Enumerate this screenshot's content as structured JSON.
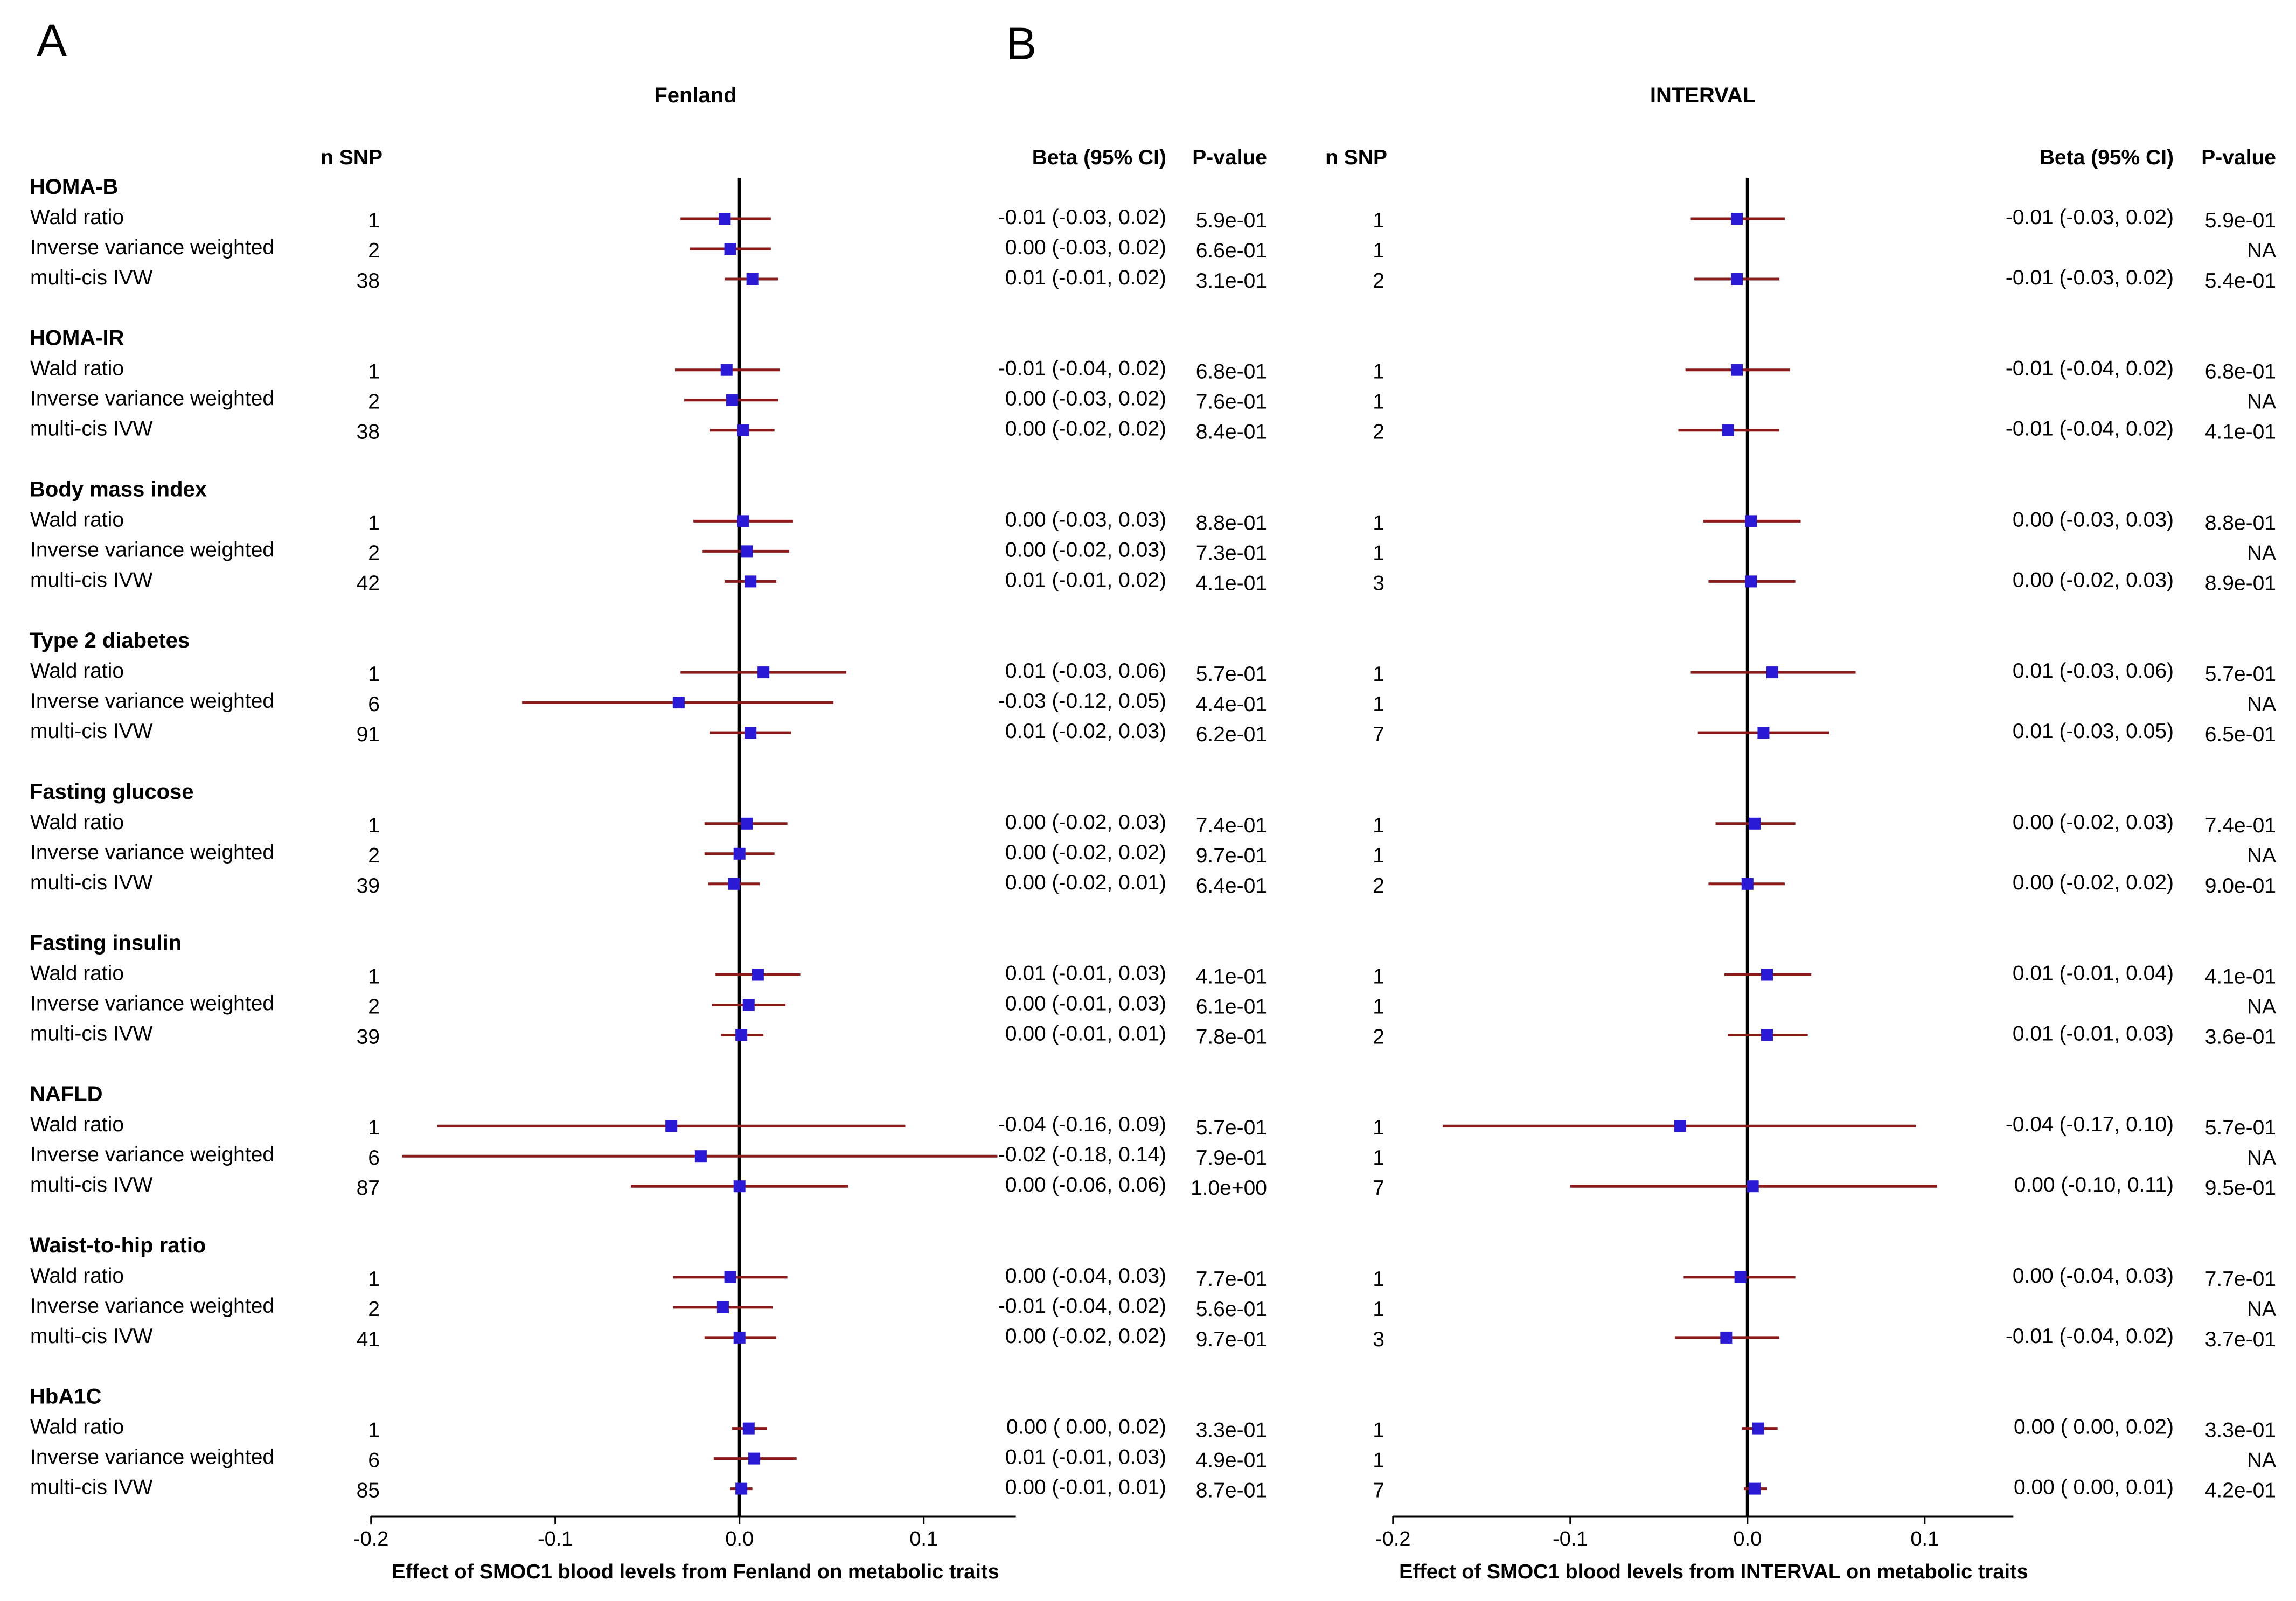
{
  "panel_letters": [
    "A",
    "B"
  ],
  "headers": {
    "nsnp": "n SNP",
    "beta": "Beta (95% CI)",
    "pvalue": "P-value"
  },
  "chart_data": [
    {
      "type": "forest",
      "panel": "A",
      "title": "Fenland",
      "xlabel": "Effect of SMOC1 blood levels from Fenland on metabolic traits",
      "xlim": [
        -0.2,
        0.15
      ],
      "xticks": [
        -0.2,
        -0.1,
        0.0,
        0.1
      ],
      "xtick_labels": [
        "-0.2",
        "-0.1",
        "0.0",
        "0.1"
      ],
      "reference_line": 0,
      "marker_color": "#2a1ad6",
      "ci_color": "#8b1a1a",
      "groups": [
        {
          "name": "HOMA-B",
          "rows": [
            {
              "method": "Wald ratio",
              "n_snp": "1",
              "beta": -0.008,
              "lo": -0.032,
              "hi": 0.017,
              "beta_text": "-0.01 (-0.03, 0.02)",
              "p_text": "5.9e-01"
            },
            {
              "method": "Inverse variance weighted",
              "n_snp": "2",
              "beta": -0.005,
              "lo": -0.027,
              "hi": 0.017,
              "beta_text": "0.00 (-0.03, 0.02)",
              "p_text": "6.6e-01"
            },
            {
              "method": "multi-cis IVW",
              "n_snp": "38",
              "beta": 0.007,
              "lo": -0.008,
              "hi": 0.021,
              "beta_text": "0.01 (-0.01, 0.02)",
              "p_text": "3.1e-01"
            }
          ]
        },
        {
          "name": "HOMA-IR",
          "rows": [
            {
              "method": "Wald ratio",
              "n_snp": "1",
              "beta": -0.007,
              "lo": -0.035,
              "hi": 0.022,
              "beta_text": "-0.01 (-0.04, 0.02)",
              "p_text": "6.8e-01"
            },
            {
              "method": "Inverse variance weighted",
              "n_snp": "2",
              "beta": -0.004,
              "lo": -0.03,
              "hi": 0.021,
              "beta_text": "0.00 (-0.03, 0.02)",
              "p_text": "7.6e-01"
            },
            {
              "method": "multi-cis IVW",
              "n_snp": "38",
              "beta": 0.002,
              "lo": -0.016,
              "hi": 0.019,
              "beta_text": "0.00 (-0.02, 0.02)",
              "p_text": "8.4e-01"
            }
          ]
        },
        {
          "name": "Body mass index",
          "rows": [
            {
              "method": "Wald ratio",
              "n_snp": "1",
              "beta": 0.002,
              "lo": -0.025,
              "hi": 0.029,
              "beta_text": "0.00 (-0.03, 0.03)",
              "p_text": "8.8e-01"
            },
            {
              "method": "Inverse variance weighted",
              "n_snp": "2",
              "beta": 0.004,
              "lo": -0.02,
              "hi": 0.027,
              "beta_text": "0.00 (-0.02, 0.03)",
              "p_text": "7.3e-01"
            },
            {
              "method": "multi-cis IVW",
              "n_snp": "42",
              "beta": 0.006,
              "lo": -0.008,
              "hi": 0.02,
              "beta_text": "0.01 (-0.01, 0.02)",
              "p_text": "4.1e-01"
            }
          ]
        },
        {
          "name": "Type 2 diabetes",
          "rows": [
            {
              "method": "Wald ratio",
              "n_snp": "1",
              "beta": 0.013,
              "lo": -0.032,
              "hi": 0.058,
              "beta_text": "0.01 (-0.03, 0.06)",
              "p_text": "5.7e-01"
            },
            {
              "method": "Inverse variance weighted",
              "n_snp": "6",
              "beta": -0.033,
              "lo": -0.118,
              "hi": 0.051,
              "beta_text": "-0.03 (-0.12, 0.05)",
              "p_text": "4.4e-01"
            },
            {
              "method": "multi-cis IVW",
              "n_snp": "91",
              "beta": 0.006,
              "lo": -0.016,
              "hi": 0.028,
              "beta_text": "0.01 (-0.02, 0.03)",
              "p_text": "6.2e-01"
            }
          ]
        },
        {
          "name": "Fasting glucose",
          "rows": [
            {
              "method": "Wald ratio",
              "n_snp": "1",
              "beta": 0.004,
              "lo": -0.019,
              "hi": 0.026,
              "beta_text": "0.00 (-0.02, 0.03)",
              "p_text": "7.4e-01"
            },
            {
              "method": "Inverse variance weighted",
              "n_snp": "2",
              "beta": 0.0,
              "lo": -0.019,
              "hi": 0.019,
              "beta_text": "0.00 (-0.02, 0.02)",
              "p_text": "9.7e-01"
            },
            {
              "method": "multi-cis IVW",
              "n_snp": "39",
              "beta": -0.003,
              "lo": -0.017,
              "hi": 0.011,
              "beta_text": "0.00 (-0.02, 0.01)",
              "p_text": "6.4e-01"
            }
          ]
        },
        {
          "name": "Fasting insulin",
          "rows": [
            {
              "method": "Wald ratio",
              "n_snp": "1",
              "beta": 0.01,
              "lo": -0.013,
              "hi": 0.033,
              "beta_text": "0.01 (-0.01, 0.03)",
              "p_text": "4.1e-01"
            },
            {
              "method": "Inverse variance weighted",
              "n_snp": "2",
              "beta": 0.005,
              "lo": -0.015,
              "hi": 0.025,
              "beta_text": "0.00 (-0.01, 0.03)",
              "p_text": "6.1e-01"
            },
            {
              "method": "multi-cis IVW",
              "n_snp": "39",
              "beta": 0.001,
              "lo": -0.01,
              "hi": 0.013,
              "beta_text": "0.00 (-0.01, 0.01)",
              "p_text": "7.8e-01"
            }
          ]
        },
        {
          "name": "NAFLD",
          "rows": [
            {
              "method": "Wald ratio",
              "n_snp": "1",
              "beta": -0.037,
              "lo": -0.164,
              "hi": 0.09,
              "beta_text": "-0.04 (-0.16, 0.09)",
              "p_text": "5.7e-01"
            },
            {
              "method": "Inverse variance weighted",
              "n_snp": "6",
              "beta": -0.021,
              "lo": -0.183,
              "hi": 0.14,
              "beta_text": "-0.02 (-0.18, 0.14)",
              "p_text": "7.9e-01"
            },
            {
              "method": "multi-cis IVW",
              "n_snp": "87",
              "beta": 0.0,
              "lo": -0.059,
              "hi": 0.059,
              "beta_text": "0.00 (-0.06, 0.06)",
              "p_text": "1.0e+00"
            }
          ]
        },
        {
          "name": "Waist-to-hip ratio",
          "rows": [
            {
              "method": "Wald ratio",
              "n_snp": "1",
              "beta": -0.005,
              "lo": -0.036,
              "hi": 0.026,
              "beta_text": "0.00 (-0.04, 0.03)",
              "p_text": "7.7e-01"
            },
            {
              "method": "Inverse variance weighted",
              "n_snp": "2",
              "beta": -0.009,
              "lo": -0.036,
              "hi": 0.018,
              "beta_text": "-0.01 (-0.04, 0.02)",
              "p_text": "5.6e-01"
            },
            {
              "method": "multi-cis IVW",
              "n_snp": "41",
              "beta": 0.0,
              "lo": -0.019,
              "hi": 0.02,
              "beta_text": "0.00 (-0.02, 0.02)",
              "p_text": "9.7e-01"
            }
          ]
        },
        {
          "name": "HbA1C",
          "rows": [
            {
              "method": "Wald ratio",
              "n_snp": "1",
              "beta": 0.005,
              "lo": -0.004,
              "hi": 0.015,
              "beta_text": "0.00 ( 0.00, 0.02)",
              "p_text": "3.3e-01"
            },
            {
              "method": "Inverse variance weighted",
              "n_snp": "6",
              "beta": 0.008,
              "lo": -0.014,
              "hi": 0.031,
              "beta_text": "0.01 (-0.01, 0.03)",
              "p_text": "4.9e-01"
            },
            {
              "method": "multi-cis IVW",
              "n_snp": "85",
              "beta": 0.001,
              "lo": -0.005,
              "hi": 0.007,
              "beta_text": "0.00 (-0.01, 0.01)",
              "p_text": "8.7e-01"
            }
          ]
        }
      ]
    },
    {
      "type": "forest",
      "panel": "B",
      "title": "INTERVAL",
      "xlabel": "Effect of SMOC1 blood levels from INTERVAL on metabolic traits",
      "xlim": [
        -0.2,
        0.15
      ],
      "xticks": [
        -0.2,
        -0.1,
        0.0,
        0.1
      ],
      "xtick_labels": [
        "-0.2",
        "-0.1",
        "0.0",
        "0.1"
      ],
      "reference_line": 0,
      "marker_color": "#2a1ad6",
      "ci_color": "#8b1a1a",
      "groups": [
        {
          "name": "HOMA-B",
          "rows": [
            {
              "n_snp": "1",
              "beta": -0.006,
              "lo": -0.032,
              "hi": 0.021,
              "beta_text": "-0.01 (-0.03, 0.02)",
              "p_text": "5.9e-01"
            },
            {
              "n_snp": "1",
              "beta": null,
              "lo": null,
              "hi": null,
              "beta_text": "",
              "p_text": "NA"
            },
            {
              "n_snp": "2",
              "beta": -0.006,
              "lo": -0.03,
              "hi": 0.018,
              "beta_text": "-0.01 (-0.03, 0.02)",
              "p_text": "5.4e-01"
            }
          ]
        },
        {
          "name": "HOMA-IR",
          "rows": [
            {
              "n_snp": "1",
              "beta": -0.006,
              "lo": -0.035,
              "hi": 0.024,
              "beta_text": "-0.01 (-0.04, 0.02)",
              "p_text": "6.8e-01"
            },
            {
              "n_snp": "1",
              "beta": null,
              "lo": null,
              "hi": null,
              "beta_text": "",
              "p_text": "NA"
            },
            {
              "n_snp": "2",
              "beta": -0.011,
              "lo": -0.039,
              "hi": 0.018,
              "beta_text": "-0.01 (-0.04, 0.02)",
              "p_text": "4.1e-01"
            }
          ]
        },
        {
          "name": "Body mass index",
          "rows": [
            {
              "n_snp": "1",
              "beta": 0.002,
              "lo": -0.025,
              "hi": 0.03,
              "beta_text": "0.00 (-0.03, 0.03)",
              "p_text": "8.8e-01"
            },
            {
              "n_snp": "1",
              "beta": null,
              "lo": null,
              "hi": null,
              "beta_text": "",
              "p_text": "NA"
            },
            {
              "n_snp": "3",
              "beta": 0.002,
              "lo": -0.022,
              "hi": 0.027,
              "beta_text": "0.00 (-0.02, 0.03)",
              "p_text": "8.9e-01"
            }
          ]
        },
        {
          "name": "Type 2 diabetes",
          "rows": [
            {
              "n_snp": "1",
              "beta": 0.014,
              "lo": -0.032,
              "hi": 0.061,
              "beta_text": "0.01 (-0.03, 0.06)",
              "p_text": "5.7e-01"
            },
            {
              "n_snp": "1",
              "beta": null,
              "lo": null,
              "hi": null,
              "beta_text": "",
              "p_text": "NA"
            },
            {
              "n_snp": "7",
              "beta": 0.009,
              "lo": -0.028,
              "hi": 0.046,
              "beta_text": "0.01 (-0.03, 0.05)",
              "p_text": "6.5e-01"
            }
          ]
        },
        {
          "name": "Fasting glucose",
          "rows": [
            {
              "n_snp": "1",
              "beta": 0.004,
              "lo": -0.018,
              "hi": 0.027,
              "beta_text": "0.00 (-0.02, 0.03)",
              "p_text": "7.4e-01"
            },
            {
              "n_snp": "1",
              "beta": null,
              "lo": null,
              "hi": null,
              "beta_text": "",
              "p_text": "NA"
            },
            {
              "n_snp": "2",
              "beta": 0.0,
              "lo": -0.022,
              "hi": 0.021,
              "beta_text": "0.00 (-0.02, 0.02)",
              "p_text": "9.0e-01"
            }
          ]
        },
        {
          "name": "Fasting insulin",
          "rows": [
            {
              "n_snp": "1",
              "beta": 0.011,
              "lo": -0.013,
              "hi": 0.036,
              "beta_text": "0.01 (-0.01, 0.04)",
              "p_text": "4.1e-01"
            },
            {
              "n_snp": "1",
              "beta": null,
              "lo": null,
              "hi": null,
              "beta_text": "",
              "p_text": "NA"
            },
            {
              "n_snp": "2",
              "beta": 0.011,
              "lo": -0.011,
              "hi": 0.034,
              "beta_text": "0.01 (-0.01, 0.03)",
              "p_text": "3.6e-01"
            }
          ]
        },
        {
          "name": "NAFLD",
          "rows": [
            {
              "n_snp": "1",
              "beta": -0.038,
              "lo": -0.172,
              "hi": 0.095,
              "beta_text": "-0.04 (-0.17, 0.10)",
              "p_text": "5.7e-01"
            },
            {
              "n_snp": "1",
              "beta": null,
              "lo": null,
              "hi": null,
              "beta_text": "",
              "p_text": "NA"
            },
            {
              "n_snp": "7",
              "beta": 0.003,
              "lo": -0.1,
              "hi": 0.107,
              "beta_text": "0.00 (-0.10, 0.11)",
              "p_text": "9.5e-01"
            }
          ]
        },
        {
          "name": "Waist-to-hip ratio",
          "rows": [
            {
              "n_snp": "1",
              "beta": -0.004,
              "lo": -0.036,
              "hi": 0.027,
              "beta_text": "0.00 (-0.04, 0.03)",
              "p_text": "7.7e-01"
            },
            {
              "n_snp": "1",
              "beta": null,
              "lo": null,
              "hi": null,
              "beta_text": "",
              "p_text": "NA"
            },
            {
              "n_snp": "3",
              "beta": -0.012,
              "lo": -0.041,
              "hi": 0.018,
              "beta_text": "-0.01 (-0.04, 0.02)",
              "p_text": "3.7e-01"
            }
          ]
        },
        {
          "name": "HbA1C",
          "rows": [
            {
              "n_snp": "1",
              "beta": 0.006,
              "lo": -0.003,
              "hi": 0.017,
              "beta_text": "0.00 ( 0.00, 0.02)",
              "p_text": "3.3e-01"
            },
            {
              "n_snp": "1",
              "beta": null,
              "lo": null,
              "hi": null,
              "beta_text": "",
              "p_text": "NA"
            },
            {
              "n_snp": "7",
              "beta": 0.004,
              "lo": -0.002,
              "hi": 0.011,
              "beta_text": "0.00 ( 0.00, 0.01)",
              "p_text": "4.2e-01"
            }
          ]
        }
      ]
    }
  ]
}
